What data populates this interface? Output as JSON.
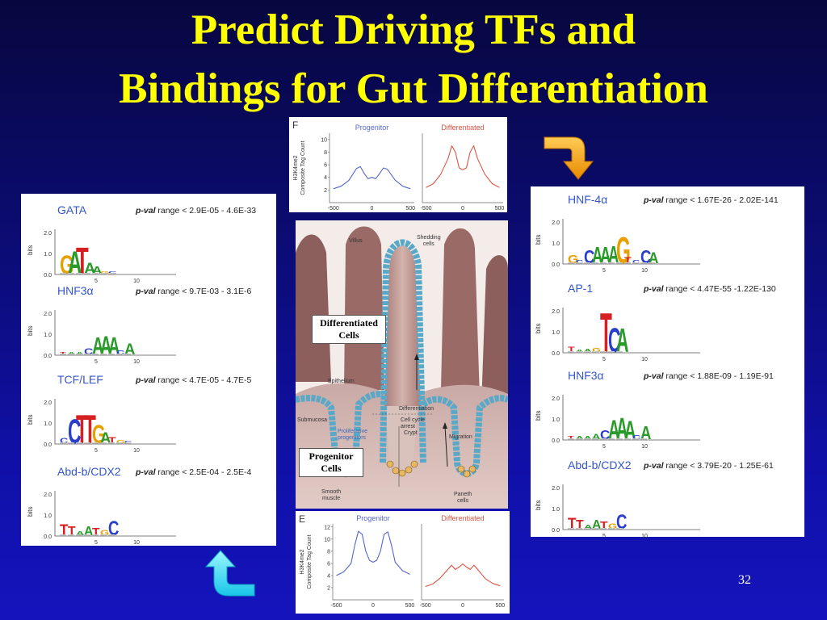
{
  "slide": {
    "title_line1": "Predict Driving TFs and",
    "title_line2": "Bindings for Gut Differentiation",
    "page_number": "32"
  },
  "colors": {
    "title": "#ffff00",
    "progenitor": "#5566cc",
    "differentiated": "#dd5544",
    "tf_name": "#3355cc"
  },
  "left_panel": {
    "motifs": [
      {
        "name": "GATA",
        "pval_label": "p-val",
        "pval_text": " range < 2.9E-05 -  4.6E-33"
      },
      {
        "name": "HNF3α",
        "pval_label": "p-val",
        "pval_text": " range < 9.7E-03 -  3.1E-6"
      },
      {
        "name": "TCF/LEF",
        "pval_label": "p-val",
        "pval_text": " range < 4.7E-05 -  4.7E-5"
      },
      {
        "name": "Abd-b/CDX2",
        "pval_label": "p-val",
        "pval_text": " range < 2.5E-04 -  2.5E-4"
      }
    ]
  },
  "right_panel": {
    "motifs": [
      {
        "name": "HNF-4α",
        "pval_label": "p-val",
        "pval_text": " range < 1.67E-26 -  2.02E-141"
      },
      {
        "name": "AP-1",
        "pval_label": "p-val",
        "pval_text": " range < 4.47E-55 -1.22E-130"
      },
      {
        "name": "HNF3α",
        "pval_label": "p-val",
        "pval_text": " range < 1.88E-09 - 1.19E-91"
      },
      {
        "name": "Abd-b/CDX2",
        "pval_label": "p-val",
        "pval_text": " range < 3.79E-20 - 1.25E-61"
      }
    ]
  },
  "motif_axis": {
    "ylabel": "bits",
    "yticks": [
      "2.0",
      "1.0",
      "0.0"
    ],
    "xticks": [
      "5",
      "10"
    ]
  },
  "diagram": {
    "labels": {
      "villus": "Villus",
      "shedding": "Shedding\ncells",
      "epithelium": "Epithelium",
      "submucosa": "Submucosa",
      "prolif": "Proliferative\nprogenitors",
      "differentiation": "Differentiation",
      "arrest": "Cell cycle\narrest",
      "crypt": "Crypt",
      "migration": "Migration",
      "smooth": "Smooth\nmuscle",
      "paneth": "Paneth\ncells"
    },
    "differentiated_box": "Differentiated\nCells",
    "progenitor_box": "Progenitor\nCells"
  },
  "chart_data": [
    {
      "type": "line",
      "panel_letter": "F",
      "ylabel": "H3K4me2\nComposite Tag Count",
      "yticks": [
        2,
        4,
        6,
        8,
        10
      ],
      "ylim": [
        0,
        11
      ],
      "xticks": [
        -500,
        0,
        500
      ],
      "xlim": [
        -550,
        550
      ],
      "series": [
        {
          "name": "Progenitor",
          "x": [
            -500,
            -400,
            -300,
            -200,
            -150,
            -100,
            -50,
            0,
            50,
            100,
            150,
            200,
            300,
            400,
            500
          ],
          "y": [
            2.2,
            2.6,
            3.5,
            5.4,
            5.7,
            4.6,
            3.8,
            4.0,
            3.8,
            4.6,
            5.5,
            5.3,
            3.6,
            2.6,
            2.2
          ]
        },
        {
          "name": "Differentiated",
          "x": [
            -500,
            -400,
            -300,
            -200,
            -150,
            -100,
            -50,
            0,
            50,
            100,
            150,
            200,
            300,
            400,
            500
          ],
          "y": [
            2.4,
            3.0,
            4.5,
            7.0,
            9.0,
            8.0,
            5.5,
            5.2,
            5.5,
            8.0,
            9.0,
            7.0,
            4.5,
            3.0,
            2.4
          ]
        }
      ]
    },
    {
      "type": "line",
      "panel_letter": "E",
      "ylabel": "H3K4me2\nComposite Tag Count",
      "yticks": [
        2,
        4,
        6,
        8,
        10,
        12
      ],
      "ylim": [
        0,
        12.5
      ],
      "xticks": [
        -500,
        0,
        500
      ],
      "xlim": [
        -550,
        550
      ],
      "series": [
        {
          "name": "Progenitor",
          "x": [
            -500,
            -400,
            -300,
            -250,
            -200,
            -150,
            -100,
            -50,
            0,
            50,
            100,
            150,
            200,
            250,
            300,
            400,
            500
          ],
          "y": [
            4.0,
            4.6,
            6.0,
            9.0,
            11.3,
            10.8,
            8.0,
            6.5,
            6.2,
            6.5,
            8.0,
            10.8,
            11.2,
            9.0,
            6.2,
            4.8,
            4.2
          ]
        },
        {
          "name": "Differentiated",
          "x": [
            -500,
            -400,
            -300,
            -200,
            -150,
            -100,
            -50,
            0,
            50,
            100,
            150,
            200,
            300,
            400,
            500
          ],
          "y": [
            2.2,
            2.6,
            3.6,
            5.0,
            5.7,
            5.0,
            5.4,
            5.9,
            5.4,
            5.0,
            5.7,
            5.0,
            3.5,
            2.7,
            2.3
          ]
        }
      ]
    }
  ]
}
